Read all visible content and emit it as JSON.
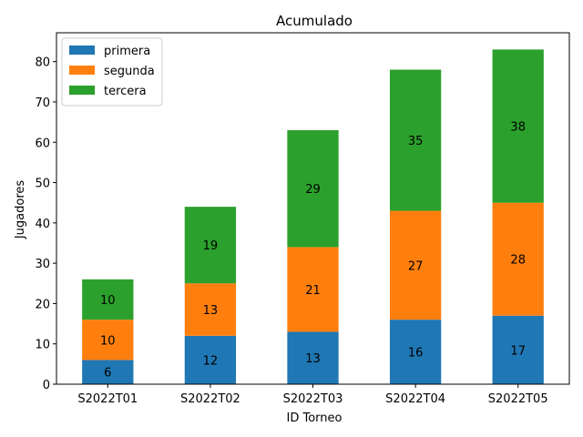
{
  "chart_data": {
    "type": "bar",
    "stacked": true,
    "title": "Acumulado",
    "xlabel": "ID Torneo",
    "ylabel": "Jugadores",
    "categories": [
      "S2022T01",
      "S2022T02",
      "S2022T03",
      "S2022T04",
      "S2022T05"
    ],
    "series": [
      {
        "name": "primera",
        "values": [
          6,
          12,
          13,
          16,
          17
        ],
        "color": "#1f77b4"
      },
      {
        "name": "segunda",
        "values": [
          10,
          13,
          21,
          27,
          28
        ],
        "color": "#ff7f0e"
      },
      {
        "name": "tercera",
        "values": [
          10,
          19,
          29,
          35,
          38
        ],
        "color": "#2ca02c"
      }
    ],
    "ylim": [
      0,
      87.15
    ],
    "yticks": [
      0,
      10,
      20,
      30,
      40,
      50,
      60,
      70,
      80
    ],
    "grid": false,
    "legend_position": "top-left"
  }
}
